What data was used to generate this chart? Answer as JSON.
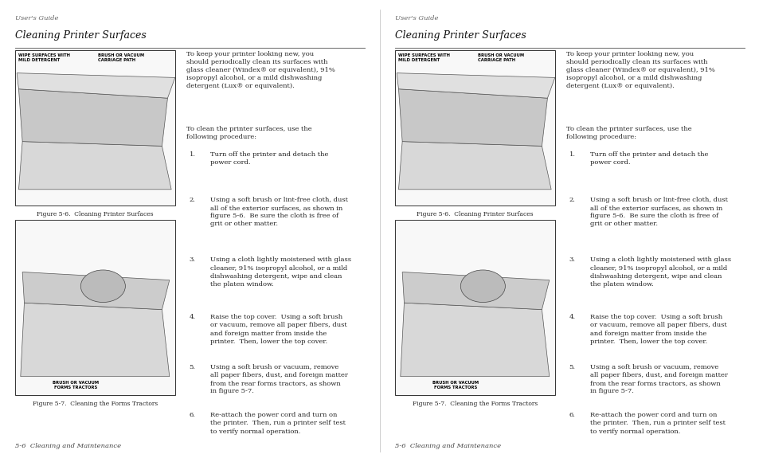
{
  "background_color": "#ffffff",
  "page_width": 9.54,
  "page_height": 5.8,
  "header_text": "User's Guide",
  "header_color": "#666666",
  "section_title": "Cleaning Printer Surfaces",
  "section_title_color": "#111111",
  "divider_color": "#666666",
  "figure1_caption": "Figure 5-6.  Cleaning Printer Surfaces",
  "figure2_caption": "Figure 5-7.  Cleaning the Forms Tractors",
  "figure1_label1": "WIPE SURFACES WITH\nMILD DETERGENT",
  "figure1_label2": "BRUSH OR VACUUM\nCARRIAGE PATH",
  "figure2_label1": "BRUSH OR VACUUM\nFORMS TRACTORS",
  "body_text_para1": "To keep your printer looking new, you\nshould periodically clean its surfaces with\nglass cleaner (Windex® or equivalent), 91%\nisopropyl alcohol, or a mild dishwashing\ndetergent (Lux® or equivalent).",
  "body_text_para2": "To clean the printer surfaces, use the\nfollowing procedure:",
  "body_items": [
    "Turn off the printer and detach the\npower cord.",
    "Using a soft brush or lint-free cloth, dust\nall of the exterior surfaces, as shown in\nfigure 5-6.  Be sure the cloth is free of\ngrit or other matter.",
    "Using a cloth lightly moistened with glass\ncleaner, 91% isopropyl alcohol, or a mild\ndishwashing detergent, wipe and clean\nthe platen window.",
    "Raise the top cover.  Using a soft brush\nor vacuum, remove all paper fibers, dust\nand foreign matter from inside the\nprinter.  Then, lower the top cover.",
    "Using a soft brush or vacuum, remove\nall paper fibers, dust, and foreign matter\nfrom the rear forms tractors, as shown\nin figure 5-7.",
    "Re-attach the power cord and turn on\nthe printer.  Then, run a printer self test\nto verify normal operation."
  ],
  "footer_text": "5-6  Cleaning and Maintenance",
  "footer_color": "#444444",
  "image_border_color": "#333333",
  "image_fill_color": "#ffffff",
  "text_color": "#222222"
}
